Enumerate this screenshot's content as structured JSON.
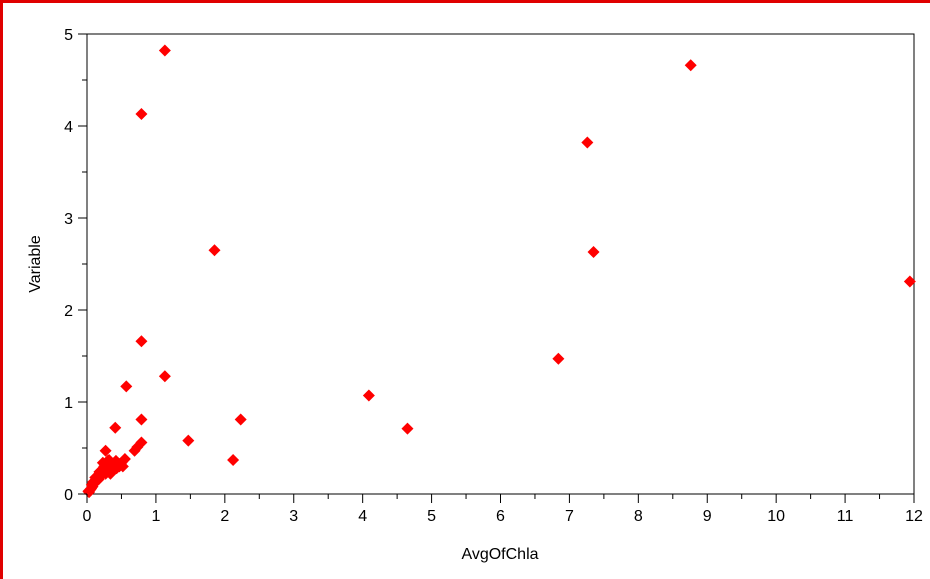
{
  "colors": {
    "frame_border": "#e00000",
    "marker": "#ff0000",
    "axis": "#000000",
    "background": "#ffffff"
  },
  "chart_data": {
    "type": "scatter",
    "xlabel": "AvgOfChla",
    "ylabel": "Variable",
    "xlim": [
      0,
      12
    ],
    "ylim": [
      0,
      5
    ],
    "x_ticks": [
      "0",
      "1",
      "2",
      "3",
      "4",
      "5",
      "6",
      "7",
      "8",
      "9",
      "10",
      "11",
      "12"
    ],
    "y_ticks": [
      "0",
      "1",
      "2",
      "3",
      "4",
      "5"
    ],
    "grid": false,
    "marker": "diamond",
    "series": [
      {
        "points": [
          [
            1.13,
            4.82
          ],
          [
            0.79,
            4.13
          ],
          [
            1.85,
            2.65
          ],
          [
            0.79,
            1.66
          ],
          [
            0.57,
            1.17
          ],
          [
            1.13,
            1.28
          ],
          [
            0.79,
            0.81
          ],
          [
            0.41,
            0.72
          ],
          [
            0.27,
            0.47
          ],
          [
            0.79,
            0.56
          ],
          [
            0.73,
            0.51
          ],
          [
            0.69,
            0.47
          ],
          [
            1.47,
            0.58
          ],
          [
            2.23,
            0.81
          ],
          [
            2.12,
            0.37
          ],
          [
            4.09,
            1.07
          ],
          [
            4.65,
            0.71
          ],
          [
            6.84,
            1.47
          ],
          [
            7.26,
            3.82
          ],
          [
            7.35,
            2.63
          ],
          [
            8.76,
            4.66
          ],
          [
            11.94,
            2.31
          ],
          [
            0.55,
            0.38
          ],
          [
            0.5,
            0.34
          ],
          [
            0.47,
            0.3
          ],
          [
            0.43,
            0.28
          ],
          [
            0.42,
            0.36
          ],
          [
            0.38,
            0.33
          ],
          [
            0.36,
            0.26
          ],
          [
            0.33,
            0.31
          ],
          [
            0.3,
            0.36
          ],
          [
            0.28,
            0.28
          ],
          [
            0.27,
            0.22
          ],
          [
            0.25,
            0.3
          ],
          [
            0.22,
            0.26
          ],
          [
            0.2,
            0.2
          ],
          [
            0.18,
            0.24
          ],
          [
            0.17,
            0.16
          ],
          [
            0.15,
            0.19
          ],
          [
            0.13,
            0.14
          ],
          [
            0.12,
            0.18
          ],
          [
            0.1,
            0.11
          ],
          [
            0.09,
            0.13
          ],
          [
            0.08,
            0.08
          ],
          [
            0.07,
            0.1
          ],
          [
            0.06,
            0.06
          ],
          [
            0.05,
            0.05
          ],
          [
            0.04,
            0.04
          ],
          [
            0.03,
            0.02
          ],
          [
            0.02,
            0.03
          ],
          [
            0.34,
            0.22
          ],
          [
            0.46,
            0.33
          ],
          [
            0.52,
            0.3
          ],
          [
            0.23,
            0.34
          ],
          [
            0.32,
            0.37
          ],
          [
            0.4,
            0.3
          ]
        ]
      }
    ]
  }
}
